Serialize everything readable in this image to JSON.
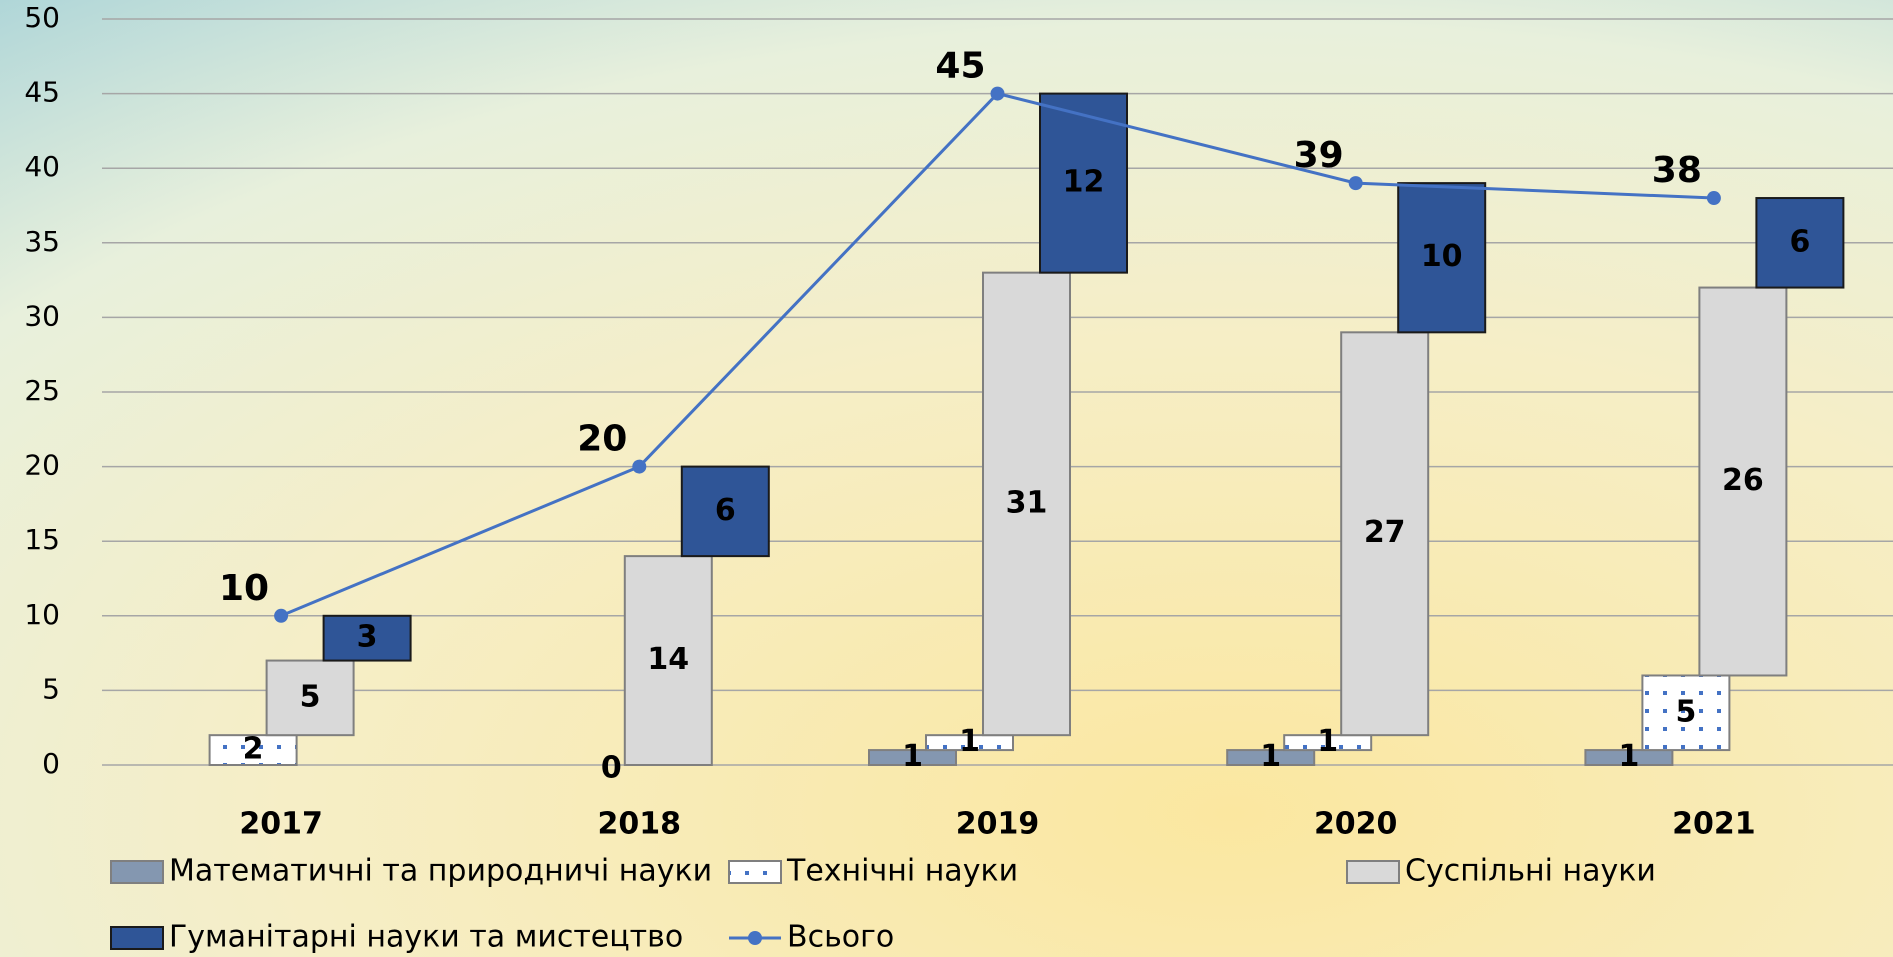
{
  "chart_data": {
    "type": "bar",
    "categories": [
      "2017",
      "2018",
      "2019",
      "2020",
      "2021"
    ],
    "series": [
      {
        "name": "Математичні та природничі науки",
        "color": "#8497b0",
        "values": [
          null,
          null,
          1,
          1,
          1
        ]
      },
      {
        "name": "Технічні науки",
        "color": "#ffffff",
        "values": [
          2,
          0,
          1,
          1,
          5
        ]
      },
      {
        "name": "Суспільні науки",
        "color": "#d9d9d9",
        "values": [
          5,
          14,
          31,
          27,
          26
        ]
      },
      {
        "name": "Гуманітарні науки та мистецтво",
        "color": "#2f5597",
        "values": [
          3,
          6,
          12,
          10,
          6
        ]
      },
      {
        "name": "Всього",
        "color": "#4472c4",
        "type": "line",
        "values": [
          10,
          20,
          45,
          39,
          38
        ]
      }
    ],
    "ylim": [
      0,
      50
    ],
    "yticks": [
      0,
      5,
      10,
      15,
      20,
      25,
      30,
      35,
      40,
      45,
      50
    ],
    "grid": true
  }
}
